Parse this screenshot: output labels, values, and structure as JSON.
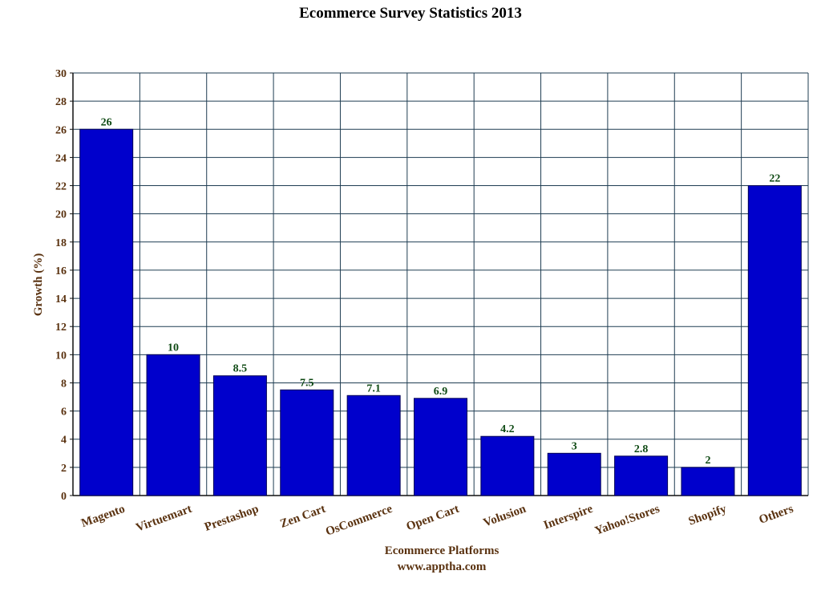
{
  "chart_data": {
    "type": "bar",
    "title": "Ecommerce Survey Statistics 2013",
    "xlabel": "Ecommerce Platforms",
    "xlabel_sub": "www.apptha.com",
    "ylabel": "Growth (%)",
    "ylim": [
      0,
      30
    ],
    "ytick_step": 2,
    "grid": true,
    "legend": "none",
    "categories": [
      "Magento",
      "Virtuemart",
      "Prestashop",
      "Zen Cart",
      "OsCommerce",
      "Open Cart",
      "Volusion",
      "Interspire",
      "Yahoo!Stores",
      "Shopify",
      "Others"
    ],
    "values": [
      26,
      10,
      8.5,
      7.5,
      7.1,
      6.9,
      4.2,
      3,
      2.8,
      2,
      22
    ],
    "data_labels": [
      "26",
      "10",
      "8.5",
      "7.5",
      "7.1",
      "6.9",
      "4.2",
      "3",
      "2.8",
      "2",
      "22"
    ],
    "colors": {
      "bar": "#0000cc",
      "bar_edge": "#000055",
      "grid": "#1f3d52",
      "axis_text": "#5a3210",
      "data_label": "#0f4a14",
      "title": "#000000"
    }
  }
}
